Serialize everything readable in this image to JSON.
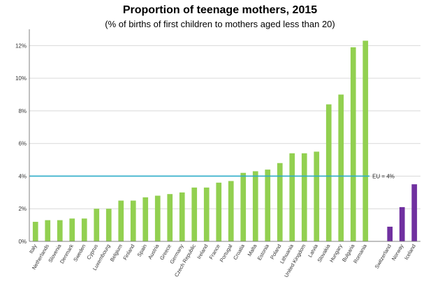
{
  "chart_data": {
    "type": "bar",
    "title": "Proportion of teenage mothers, 2015",
    "subtitle": "(% of births of first children to mothers aged less than 20)",
    "xlabel": "",
    "ylabel": "",
    "ylim": [
      0,
      13
    ],
    "yticks": [
      0,
      2,
      4,
      6,
      8,
      10,
      12
    ],
    "ytick_labels": [
      "0%",
      "2%",
      "4%",
      "6%",
      "8%",
      "10%",
      "12%"
    ],
    "grid": true,
    "colors": {
      "eu": "#92d050",
      "non_eu": "#7030a0",
      "reference_line": "#2bacc9"
    },
    "categories": [
      "Italy",
      "Netherlands",
      "Slovenia",
      "Denmark",
      "Sweden",
      "Cyprus",
      "Luxembourg",
      "Belgium",
      "Finland",
      "Spain",
      "Austria",
      "Greece",
      "Germany",
      "Czech Republic",
      "Ireland",
      "France",
      "Portugal",
      "Croatia",
      "Malta",
      "Estonia",
      "Poland",
      "Lithuania",
      "United Kingdom",
      "Latvia",
      "Slovakia",
      "Hungary",
      "Bulgaria",
      "Romania",
      "Switzerland",
      "Norway",
      "Iceland"
    ],
    "values": [
      1.2,
      1.3,
      1.3,
      1.4,
      1.4,
      2.0,
      2.0,
      2.5,
      2.5,
      2.7,
      2.8,
      2.9,
      3.0,
      3.3,
      3.3,
      3.6,
      3.7,
      4.2,
      4.3,
      4.4,
      4.8,
      5.4,
      5.4,
      5.5,
      8.4,
      9.0,
      11.9,
      12.3,
      0.9,
      2.1,
      3.5
    ],
    "groups": [
      "eu",
      "eu",
      "eu",
      "eu",
      "eu",
      "eu",
      "eu",
      "eu",
      "eu",
      "eu",
      "eu",
      "eu",
      "eu",
      "eu",
      "eu",
      "eu",
      "eu",
      "eu",
      "eu",
      "eu",
      "eu",
      "eu",
      "eu",
      "eu",
      "eu",
      "eu",
      "eu",
      "eu",
      "non_eu",
      "non_eu",
      "non_eu"
    ],
    "reference_line": {
      "value": 4,
      "label": "EU = 4%"
    }
  }
}
